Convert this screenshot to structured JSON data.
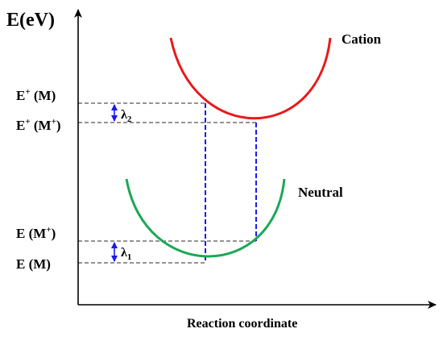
{
  "axes": {
    "y_title": "E(eV)",
    "x_title": "Reaction coordinate"
  },
  "curves": {
    "cation": {
      "label": "Cation",
      "color": "#e8191b"
    },
    "neutral": {
      "label": "Neutral",
      "color": "#1aa855"
    }
  },
  "levels": {
    "e_plus_m": {
      "base": "E",
      "sup": "+",
      "arg": " (M)"
    },
    "e_plus_mplus": {
      "base": "E",
      "sup": "+",
      "arg": " (M",
      "arg_sup": "+",
      "close": ")"
    },
    "e_mplus": {
      "base": "E (M",
      "sup": "+",
      "close": ")"
    },
    "e_m": {
      "base": "E (M)"
    }
  },
  "lambdas": {
    "lambda2": {
      "sym": "λ",
      "sub": "2"
    },
    "lambda1": {
      "sym": "λ",
      "sub": "1"
    }
  },
  "colors": {
    "transition": "#1a1aee",
    "guide": "#555555",
    "axis": "#000000"
  }
}
